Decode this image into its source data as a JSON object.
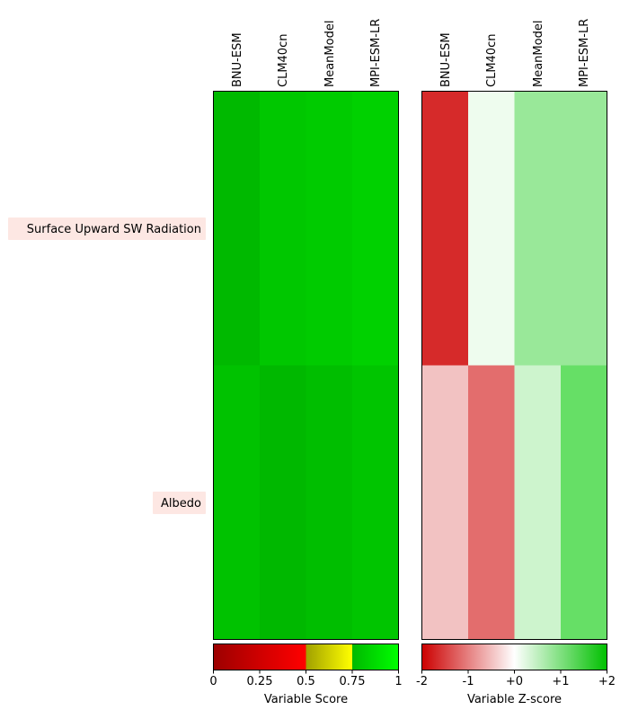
{
  "chart_data": [
    {
      "type": "heatmap",
      "models": [
        "BNU-ESM",
        "CLM40cn",
        "MeanModel",
        "MPI-ESM-LR"
      ],
      "variables": [
        "Surface Upward SW Radiation",
        "Albedo"
      ],
      "values": [
        [
          0.84,
          0.87,
          0.88,
          0.9
        ],
        [
          0.86,
          0.82,
          0.85,
          0.87
        ]
      ],
      "colors": [
        [
          "#00b900",
          "#00c700",
          "#00cb00",
          "#00d100"
        ],
        [
          "#00c200",
          "#00b800",
          "#00be00",
          "#00c500"
        ]
      ],
      "colorbar": {
        "label": "Variable Score",
        "ticks": [
          "0",
          "0.25",
          "0.5",
          "0.75",
          "1"
        ],
        "range": [
          0,
          1
        ]
      }
    },
    {
      "type": "heatmap",
      "models": [
        "BNU-ESM",
        "CLM40cn",
        "MeanModel",
        "MPI-ESM-LR"
      ],
      "variables": [
        "Surface Upward SW Radiation",
        "Albedo"
      ],
      "values": [
        [
          -1.8,
          0.1,
          0.8,
          0.8
        ],
        [
          -0.5,
          -1.2,
          0.4,
          1.2
        ]
      ],
      "colors": [
        [
          "#d62a2a",
          "#eefcee",
          "#99e899",
          "#99e899"
        ],
        [
          "#f2c2c2",
          "#e36d6d",
          "#cdf4cd",
          "#66df66"
        ]
      ],
      "colorbar": {
        "label": "Variable Z-score",
        "ticks": [
          "-2",
          "-1",
          "+0",
          "+1",
          "+2"
        ],
        "range": [
          -2,
          2
        ]
      }
    }
  ],
  "row_label_bg": "#fde7e3"
}
